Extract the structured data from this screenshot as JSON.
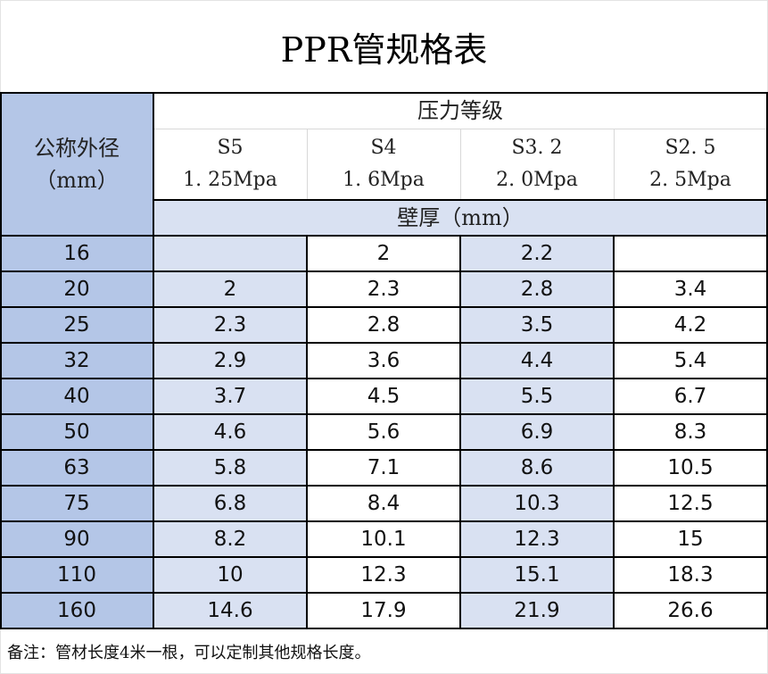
{
  "title": "PPR管规格表",
  "colors": {
    "first_column_bg": "#B4C6E7",
    "alt_column_bg": "#D9E1F2",
    "wall_thickness_header_bg": "#D9E1F2",
    "border": "#000000"
  },
  "header": {
    "diameter_label": "公称外径",
    "diameter_unit": "（mm）",
    "pressure_group_label": "压力等级",
    "wall_thickness_label": "壁厚（mm）",
    "grades": [
      {
        "series": "S5",
        "pressure": "1.25Mpa"
      },
      {
        "series": "S4",
        "pressure": "1.6Mpa"
      },
      {
        "series": "S3.2",
        "pressure": "2.0Mpa"
      },
      {
        "series": "S2.5",
        "pressure": "2.5Mpa"
      }
    ]
  },
  "rows": [
    {
      "diameter": "16",
      "values": [
        "",
        "2",
        "2.2",
        ""
      ]
    },
    {
      "diameter": "20",
      "values": [
        "2",
        "2.3",
        "2.8",
        "3.4"
      ]
    },
    {
      "diameter": "25",
      "values": [
        "2.3",
        "2.8",
        "3.5",
        "4.2"
      ]
    },
    {
      "diameter": "32",
      "values": [
        "2.9",
        "3.6",
        "4.4",
        "5.4"
      ]
    },
    {
      "diameter": "40",
      "values": [
        "3.7",
        "4.5",
        "5.5",
        "6.7"
      ]
    },
    {
      "diameter": "50",
      "values": [
        "4.6",
        "5.6",
        "6.9",
        "8.3"
      ]
    },
    {
      "diameter": "63",
      "values": [
        "5.8",
        "7.1",
        "8.6",
        "10.5"
      ]
    },
    {
      "diameter": "75",
      "values": [
        "6.8",
        "8.4",
        "10.3",
        "12.5"
      ]
    },
    {
      "diameter": "90",
      "values": [
        "8.2",
        "10.1",
        "12.3",
        "15"
      ]
    },
    {
      "diameter": "110",
      "values": [
        "10",
        "12.3",
        "15.1",
        "18.3"
      ]
    },
    {
      "diameter": "160",
      "values": [
        "14.6",
        "17.9",
        "21.9",
        "26.6"
      ]
    }
  ],
  "note": "备注：管材长度4米一根，可以定制其他规格长度。"
}
